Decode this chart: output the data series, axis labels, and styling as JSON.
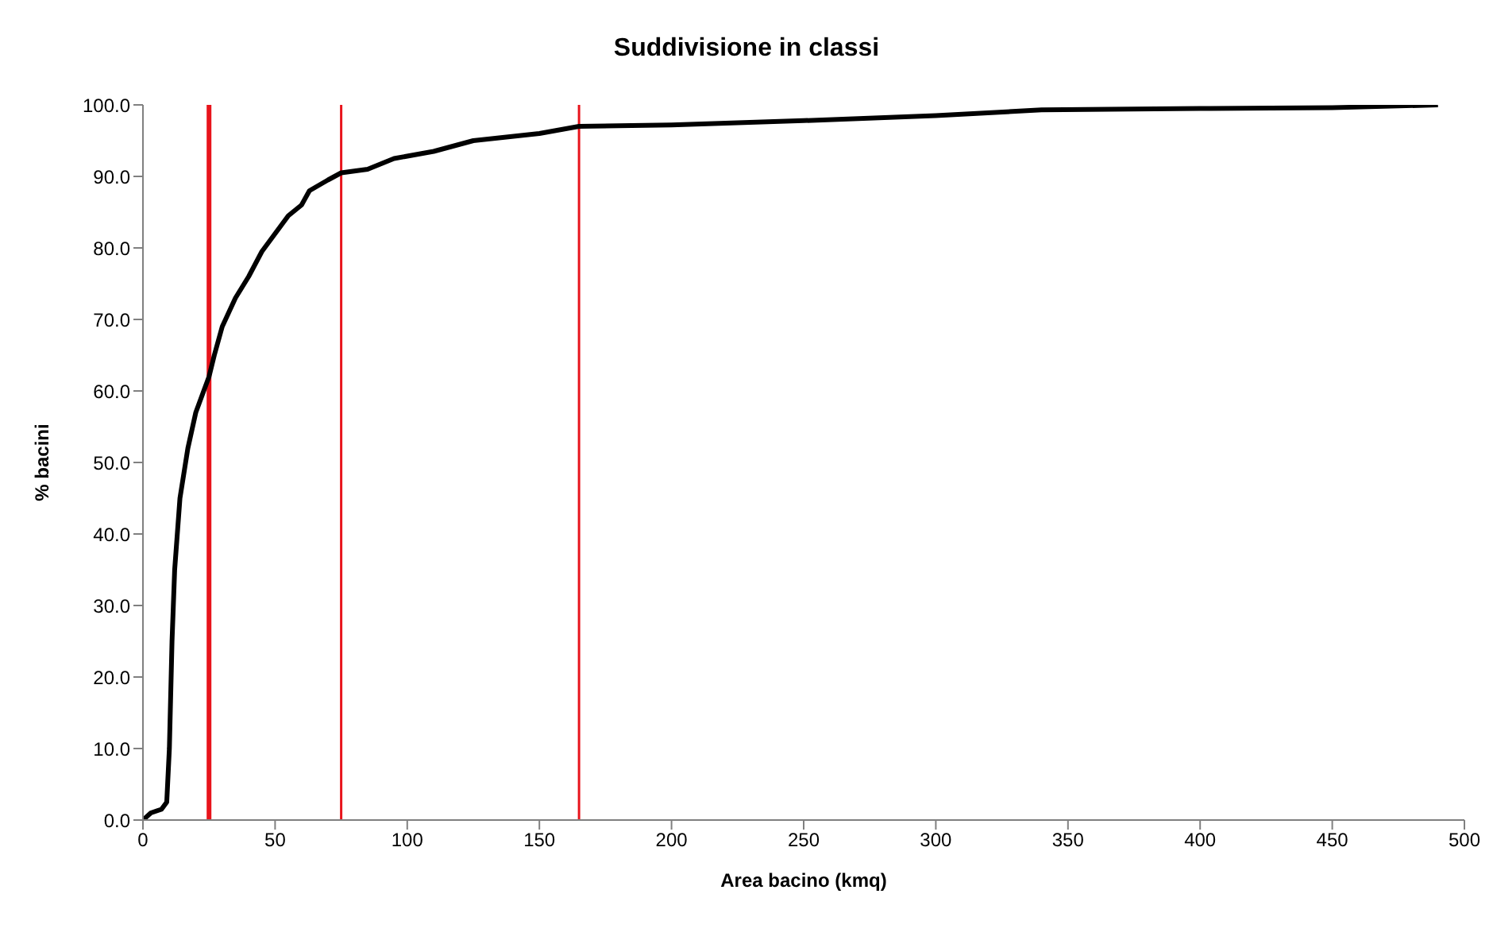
{
  "chart_data": {
    "type": "line",
    "title": "Suddivisione in classi",
    "xlabel": "Area bacino (kmq)",
    "ylabel": "% bacini",
    "xlim": [
      0,
      500
    ],
    "xticks": [
      0,
      50,
      100,
      150,
      200,
      250,
      300,
      350,
      400,
      450,
      500
    ],
    "ylim": [
      0,
      100
    ],
    "yticks": [
      {
        "value": 0,
        "label": "0.0"
      },
      {
        "value": 10,
        "label": "10.0"
      },
      {
        "value": 20,
        "label": "20.0"
      },
      {
        "value": 30,
        "label": "30.0"
      },
      {
        "value": 40,
        "label": "40.0"
      },
      {
        "value": 50,
        "label": "50.0"
      },
      {
        "value": 60,
        "label": "60.0"
      },
      {
        "value": 70,
        "label": "70.0"
      },
      {
        "value": 80,
        "label": "80.0"
      },
      {
        "value": 90,
        "label": "90.0"
      },
      {
        "value": 100,
        "label": "100.0"
      }
    ],
    "grid": false,
    "legend": false,
    "marker": "none",
    "line_style": "solid",
    "x": [
      0,
      3,
      7,
      9,
      10,
      11,
      12,
      14,
      17,
      20,
      25,
      27,
      30,
      35,
      40,
      45,
      50,
      55,
      60,
      63,
      70,
      75,
      85,
      95,
      110,
      125,
      150,
      165,
      200,
      250,
      300,
      340,
      400,
      450,
      490
    ],
    "series": [
      {
        "color": "#000000",
        "values": [
          0,
          1,
          1.5,
          2.5,
          10,
          25,
          35,
          45,
          52,
          57,
          62,
          65,
          69,
          73,
          76,
          79.5,
          82,
          84.5,
          86,
          88,
          89.5,
          90.5,
          91,
          92.5,
          93.5,
          95,
          96,
          97,
          97.2,
          97.8,
          98.5,
          99.3,
          99.5,
          99.6,
          100
        ]
      }
    ],
    "ref_lines": [
      {
        "axis": "x",
        "value": 25,
        "color": "#e8141c"
      },
      {
        "axis": "x",
        "value": 75,
        "color": "#e8141c"
      },
      {
        "axis": "x",
        "value": 165,
        "color": "#e8141c"
      }
    ]
  }
}
